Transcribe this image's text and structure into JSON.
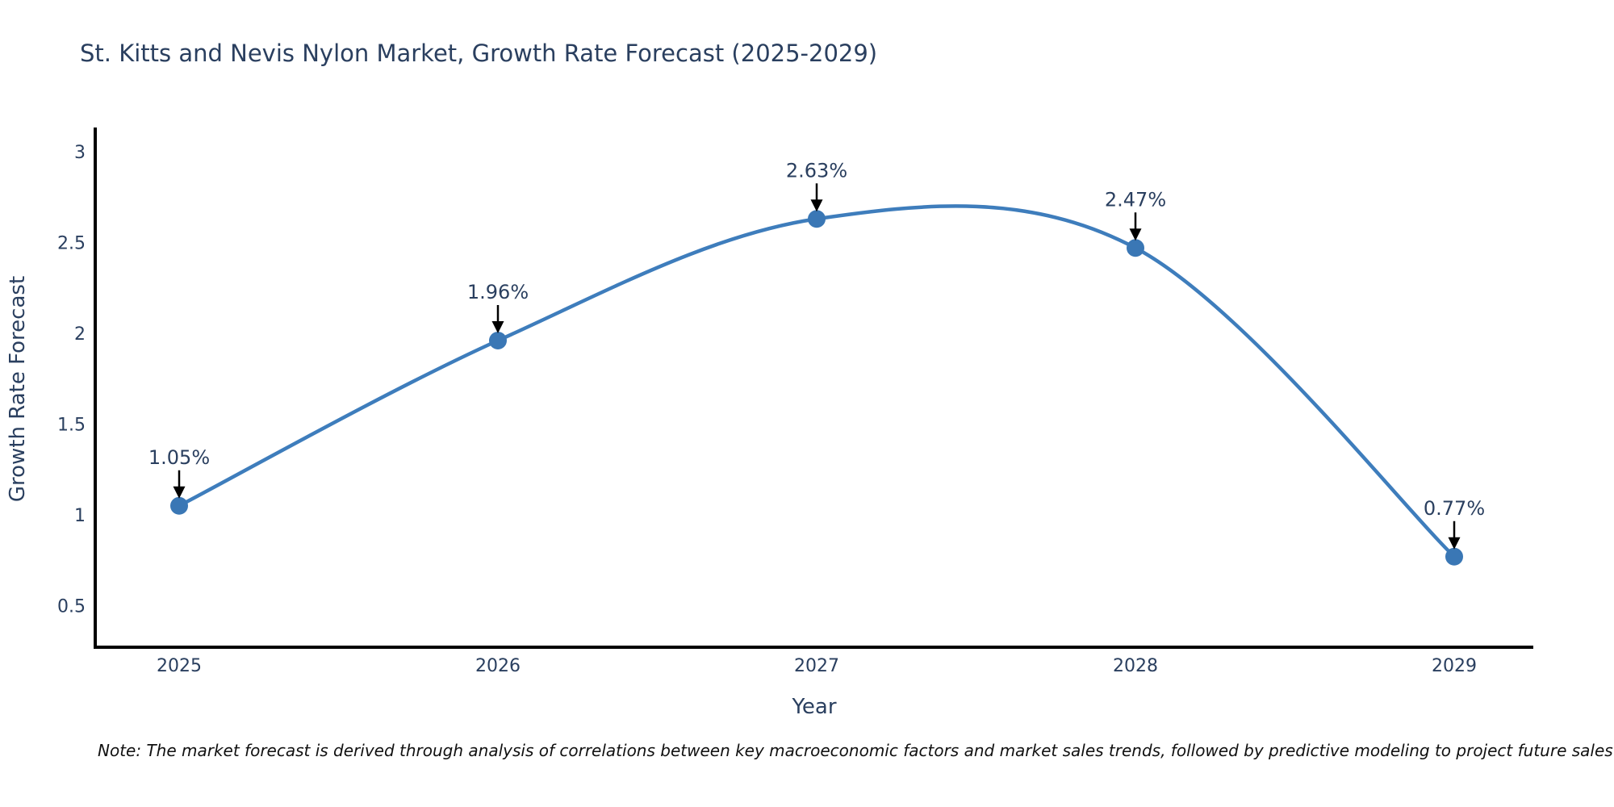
{
  "title": "St. Kitts and Nevis Nylon Market, Growth Rate Forecast (2025-2029)",
  "note": "Note: The market forecast is derived through analysis of correlations between key macroeconomic factors and market sales trends, followed by predictive modeling to project future sales",
  "chart_data": {
    "type": "line",
    "line_shape": "spline",
    "title": "St. Kitts and Nevis Nylon Market, Growth Rate Forecast (2025-2029)",
    "categories": [
      "2025",
      "2026",
      "2027",
      "2028",
      "2029"
    ],
    "values": [
      1.05,
      1.96,
      2.63,
      2.47,
      0.77
    ],
    "point_labels": [
      "1.05%",
      "1.96%",
      "2.63%",
      "2.47%",
      "0.77%"
    ],
    "xlabel": "Year",
    "ylabel": "Growth Rate Forecast",
    "ytick_labels": [
      "3",
      "2.5",
      "2",
      "1.5",
      "1",
      "0.5"
    ],
    "ytick_values": [
      3,
      2.5,
      2,
      1.5,
      1,
      0.5
    ],
    "ylim": [
      0.26,
      3.12
    ],
    "grid": false,
    "legend_position": "none",
    "colors": {
      "line": "#3e7dbc",
      "marker": "#3a77b5",
      "axis": "#000000",
      "text": "#2a3f5f",
      "annotation_arrow": "#000000",
      "background": "#ffffff"
    }
  }
}
